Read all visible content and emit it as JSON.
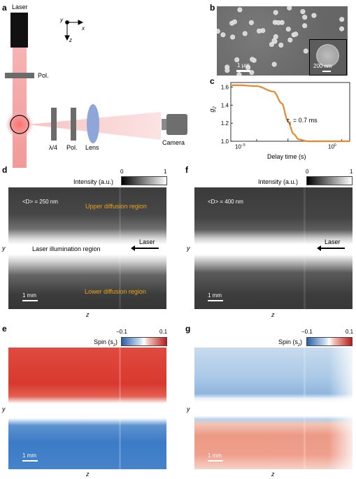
{
  "panels": {
    "a": "a",
    "b": "b",
    "c": "c",
    "d": "d",
    "e": "e",
    "f": "f",
    "g": "g"
  },
  "setup": {
    "laser": "Laser",
    "pol_top": "Pol.",
    "quarter_wave": "λ/4",
    "pol_bottom": "Pol.",
    "lens": "Lens",
    "camera": "Camera",
    "axis_y": "y",
    "axis_x": "x",
    "axis_z": "z"
  },
  "sem": {
    "scale_main": "1 µm",
    "scale_inset": "200 nm"
  },
  "correlation": {
    "ylabel": "g",
    "ylabel_sub": "2",
    "xlabel": "Delay time (s)",
    "annotation_prefix": "τ",
    "annotation_sub": "c",
    "annotation_value": " = 0.7 ms",
    "xtick_left_base": "10",
    "xtick_left_exp": "−5",
    "xtick_right_base": "10",
    "xtick_right_exp": "0"
  },
  "chart_data": {
    "type": "line",
    "title": "",
    "xlabel": "Delay time (s)",
    "ylabel": "g2",
    "xscale": "log",
    "xlim": [
      3e-07,
      3
    ],
    "ylim": [
      1.0,
      1.65
    ],
    "yticks": [
      1.0,
      1.2,
      1.4,
      1.6
    ],
    "xticks": [
      1e-05,
      1
    ],
    "x": [
      3e-07,
      1e-06,
      1e-05,
      0.0001,
      0.0003,
      0.0007,
      0.0015,
      0.003,
      0.01,
      0.1,
      1,
      3
    ],
    "y": [
      1.62,
      1.62,
      1.61,
      1.55,
      1.42,
      1.22,
      1.08,
      1.02,
      1.0,
      1.0,
      1.0,
      1.0
    ],
    "series_color": "#e8872b",
    "annotation": "τc = 0.7 ms"
  },
  "intensity_d": {
    "colorbar_label": "Intensity (a.u.)",
    "cb_min": "0",
    "cb_max": "1",
    "diameter": "<D> = 250 nm",
    "upper_region": "Upper diffusion region",
    "lower_region": "Lower diffusion region",
    "laser_region": "Laser illumination region",
    "laser": "Laser",
    "scale": "1 mm",
    "axis_y": "y",
    "axis_z": "z"
  },
  "intensity_f": {
    "colorbar_label": "Intensity (a.u.)",
    "cb_min": "0",
    "cb_max": "1",
    "diameter": "<D> = 400 nm",
    "laser": "Laser",
    "scale": "1 mm",
    "axis_y": "y",
    "axis_z": "z"
  },
  "spin_e": {
    "colorbar_prefix": "Spin (s",
    "colorbar_sub": "z",
    "colorbar_suffix": ")",
    "cb_min": "−0.1",
    "cb_max": "0.1",
    "scale": "1 mm",
    "axis_y": "y",
    "axis_z": "z"
  },
  "spin_g": {
    "colorbar_prefix": "Spin (s",
    "colorbar_sub": "z",
    "colorbar_suffix": ")",
    "cb_min": "−0.1",
    "cb_max": "0.1",
    "scale": "1 mm",
    "axis_y": "y",
    "axis_z": "z"
  },
  "colors": {
    "laser_beam": "#f4a3a3",
    "lens": "#8fa6d9",
    "spin_red": "#d9382e",
    "spin_blue": "#3d7cc4",
    "orange_text": "#e8a317"
  }
}
